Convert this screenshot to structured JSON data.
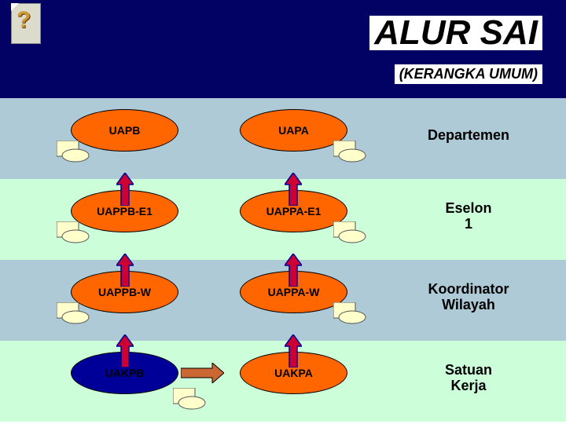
{
  "title": {
    "main": "ALUR SAI",
    "sub": "(KERANGKA UMUM)"
  },
  "colors": {
    "header_bg": "#020264",
    "row_a": "#adcad6",
    "row_b": "#ccffd9",
    "ellipse_fill": "#ff6600",
    "ellipse_blank": "#000099",
    "arrow_stroke": "#000099",
    "arrow_fill": "#cc0033",
    "pentagon_stroke": "#6666cc",
    "right_arrow_fill": "#cc6633",
    "doc_fill": "#ffffcc"
  },
  "rows": [
    {
      "left": "UAPB",
      "mid": "UAPA",
      "right": "Departemen",
      "pentagon_fill": "#ffffff"
    },
    {
      "left": "UAPPB-E1",
      "mid": "UAPPA-E1",
      "right": "Eselon 1",
      "pentagon_fill": "#e6e6fa"
    },
    {
      "left": "UAPPB-W",
      "mid": "UAPPA-W",
      "right": "Koordinator Wilayah",
      "pentagon_fill": "#ffccff"
    },
    {
      "left": "UAKPB",
      "mid": "UAKPA",
      "right": "Satuan Kerja",
      "pentagon_fill": "#ffffff"
    }
  ]
}
